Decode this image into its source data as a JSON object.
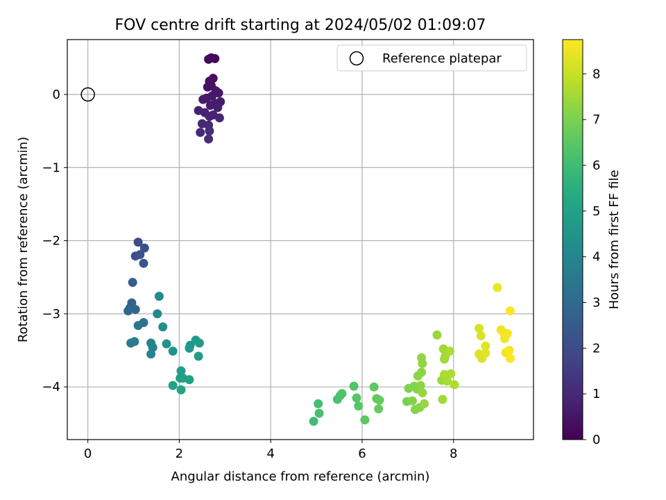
{
  "chart_data": {
    "type": "scatter",
    "title": "FOV centre drift starting at 2024/05/02 01:09:07",
    "xlabel": "Angular distance from reference (arcmin)",
    "ylabel": "Rotation from reference (arcmin)",
    "xlim": [
      -0.45,
      9.75
    ],
    "ylim": [
      -4.72,
      0.75
    ],
    "xticks": [
      0,
      2,
      4,
      6,
      8
    ],
    "yticks": [
      0,
      -1,
      -2,
      -3,
      -4
    ],
    "grid": true,
    "legend_position": "top-right",
    "reference": {
      "name": "Reference platepar",
      "x": 0,
      "y": 0
    },
    "colorbar": {
      "label": "Hours from first FF file",
      "range": [
        0,
        8.75
      ],
      "ticks": [
        0,
        1,
        2,
        3,
        4,
        5,
        6,
        7,
        8
      ],
      "colormap": "viridis"
    },
    "series": [
      {
        "points": [
          [
            2.64,
            0.48,
            0.2
          ],
          [
            2.7,
            0.5,
            0.25
          ],
          [
            2.78,
            0.49,
            0.22
          ],
          [
            2.74,
            0.22,
            0.35
          ],
          [
            2.66,
            0.18,
            0.4
          ],
          [
            2.62,
            0.1,
            0.45
          ],
          [
            2.7,
            0.12,
            0.42
          ],
          [
            2.8,
            0.05,
            0.5
          ],
          [
            2.86,
            0.02,
            0.55
          ],
          [
            2.72,
            -0.02,
            0.55
          ],
          [
            2.6,
            -0.05,
            0.6
          ],
          [
            2.52,
            -0.07,
            0.62
          ],
          [
            2.9,
            -0.1,
            0.65
          ],
          [
            2.78,
            -0.12,
            0.7
          ],
          [
            2.68,
            -0.15,
            0.72
          ],
          [
            2.84,
            -0.18,
            0.75
          ],
          [
            2.42,
            -0.22,
            0.78
          ],
          [
            2.56,
            -0.25,
            0.8
          ],
          [
            2.74,
            -0.28,
            0.85
          ],
          [
            2.66,
            -0.3,
            0.88
          ],
          [
            2.88,
            -0.32,
            0.9
          ],
          [
            2.5,
            -0.4,
            0.95
          ],
          [
            2.64,
            -0.42,
            1.0
          ],
          [
            2.46,
            -0.52,
            1.05
          ],
          [
            2.66,
            -0.5,
            1.1
          ],
          [
            2.64,
            -0.61,
            1.15
          ]
        ]
      },
      {
        "points": [
          [
            1.1,
            -2.02,
            2.0
          ],
          [
            1.24,
            -2.1,
            2.1
          ],
          [
            1.04,
            -2.21,
            2.15
          ],
          [
            1.14,
            -2.19,
            2.2
          ],
          [
            1.22,
            -2.31,
            2.3
          ],
          [
            0.98,
            -2.57,
            2.6
          ],
          [
            0.96,
            -2.85,
            2.8
          ],
          [
            0.92,
            -2.92,
            2.85
          ],
          [
            1.04,
            -2.94,
            2.9
          ],
          [
            0.88,
            -2.96,
            2.95
          ],
          [
            1.22,
            -3.12,
            3.3
          ],
          [
            1.1,
            -3.16,
            3.4
          ],
          [
            0.94,
            -3.4,
            3.6
          ],
          [
            1.02,
            -3.38,
            3.7
          ],
          [
            1.38,
            -3.4,
            3.8
          ],
          [
            1.42,
            -3.46,
            3.85
          ],
          [
            1.38,
            -3.55,
            3.9
          ],
          [
            1.52,
            -3.0,
            4.1
          ],
          [
            1.56,
            -2.76,
            4.2
          ],
          [
            1.64,
            -3.18,
            4.3
          ],
          [
            1.72,
            -3.41,
            4.4
          ],
          [
            1.86,
            -3.51,
            4.5
          ],
          [
            2.24,
            -3.43,
            4.6
          ],
          [
            2.22,
            -3.47,
            4.65
          ],
          [
            2.36,
            -3.36,
            4.7
          ],
          [
            2.44,
            -3.4,
            4.75
          ],
          [
            2.42,
            -3.58,
            4.8
          ],
          [
            2.04,
            -3.78,
            4.85
          ],
          [
            2.02,
            -3.88,
            4.9
          ],
          [
            2.08,
            -3.88,
            4.95
          ],
          [
            2.22,
            -3.9,
            5.0
          ],
          [
            1.86,
            -3.98,
            5.05
          ],
          [
            2.04,
            -4.04,
            5.1
          ]
        ]
      },
      {
        "points": [
          [
            4.94,
            -4.47,
            6.0
          ],
          [
            5.04,
            -4.23,
            6.1
          ],
          [
            5.06,
            -4.36,
            6.15
          ],
          [
            5.46,
            -4.17,
            6.2
          ],
          [
            5.52,
            -4.12,
            6.25
          ],
          [
            5.56,
            -4.09,
            6.3
          ],
          [
            5.82,
            -3.99,
            6.35
          ],
          [
            5.88,
            -4.15,
            6.4
          ],
          [
            5.92,
            -4.26,
            6.45
          ],
          [
            6.06,
            -4.45,
            6.5
          ],
          [
            6.26,
            -4.0,
            6.55
          ],
          [
            6.32,
            -4.16,
            6.6
          ],
          [
            6.38,
            -4.18,
            6.65
          ],
          [
            6.36,
            -4.3,
            6.7
          ]
        ]
      },
      {
        "points": [
          [
            6.98,
            -4.2,
            7.0
          ],
          [
            7.02,
            -4.02,
            7.05
          ],
          [
            7.1,
            -4.19,
            7.1
          ],
          [
            7.14,
            -3.99,
            7.1
          ],
          [
            7.16,
            -4.31,
            7.15
          ],
          [
            7.2,
            -4.03,
            7.15
          ],
          [
            7.22,
            -3.85,
            7.2
          ],
          [
            7.26,
            -4.28,
            7.2
          ],
          [
            7.28,
            -3.98,
            7.25
          ],
          [
            7.3,
            -3.8,
            7.25
          ],
          [
            7.32,
            -3.68,
            7.3
          ],
          [
            7.3,
            -3.6,
            7.3
          ],
          [
            7.32,
            -4.08,
            7.35
          ],
          [
            7.36,
            -4.23,
            7.35
          ],
          [
            7.64,
            -3.29,
            7.4
          ],
          [
            7.74,
            -3.91,
            7.45
          ],
          [
            7.76,
            -4.17,
            7.5
          ],
          [
            7.78,
            -3.48,
            7.5
          ],
          [
            7.8,
            -3.62,
            7.55
          ],
          [
            7.82,
            -3.58,
            7.55
          ],
          [
            7.8,
            -3.83,
            7.6
          ],
          [
            7.86,
            -3.92,
            7.6
          ],
          [
            7.92,
            -3.51,
            7.65
          ],
          [
            7.94,
            -3.82,
            7.65
          ],
          [
            8.02,
            -3.97,
            7.7
          ]
        ]
      },
      {
        "points": [
          [
            8.56,
            -3.2,
            8.2
          ],
          [
            8.6,
            -3.3,
            8.25
          ],
          [
            8.56,
            -3.55,
            8.3
          ],
          [
            8.62,
            -3.61,
            8.3
          ],
          [
            8.7,
            -3.44,
            8.35
          ],
          [
            8.7,
            -3.54,
            8.4
          ],
          [
            8.96,
            -2.64,
            8.5
          ],
          [
            9.04,
            -3.22,
            8.55
          ],
          [
            9.1,
            -3.26,
            8.6
          ],
          [
            9.12,
            -3.34,
            8.6
          ],
          [
            9.14,
            -3.53,
            8.62
          ],
          [
            9.18,
            -3.27,
            8.65
          ],
          [
            9.22,
            -3.5,
            8.68
          ],
          [
            9.24,
            -2.96,
            8.7
          ],
          [
            9.24,
            -3.61,
            8.72
          ]
        ]
      }
    ]
  }
}
